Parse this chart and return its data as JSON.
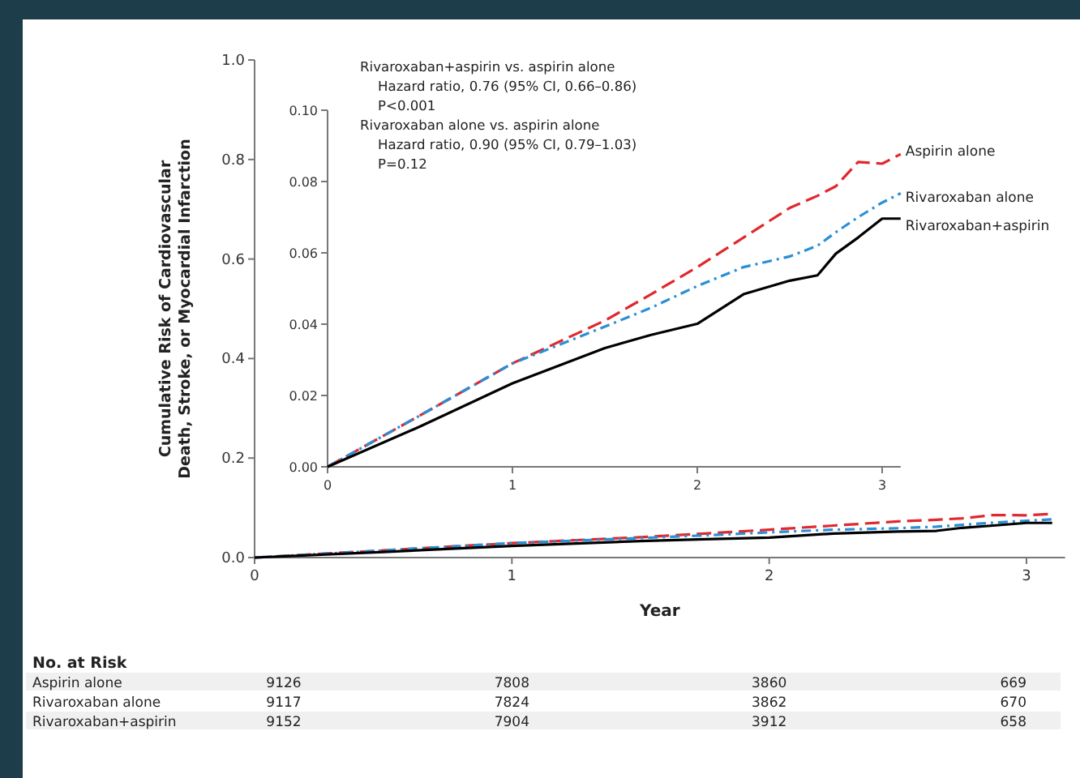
{
  "chart_data": [
    {
      "type": "line",
      "xlabel": "Year",
      "ylabel": "Cumulative Risk of Cardiovascular\nDeath, Stroke, or Myocardial Infarction",
      "x": [
        0,
        0.5,
        1,
        1.5,
        1.75,
        2,
        2.25,
        2.5,
        2.65,
        2.75,
        2.87,
        3,
        3.1
      ],
      "xlim": [
        0,
        3.15
      ],
      "xticks": [
        0,
        1,
        2,
        3
      ],
      "ylim": [
        0,
        1
      ],
      "yticks": [
        {
          "value": 0,
          "label": "0.0"
        },
        {
          "value": 0.2,
          "label": "0.2"
        },
        {
          "value": 0.4,
          "label": "0.4"
        },
        {
          "value": 0.6,
          "label": "0.6"
        },
        {
          "value": 0.8,
          "label": "0.8"
        },
        {
          "value": 1,
          "label": "1.0"
        }
      ],
      "grid": false,
      "legend": false,
      "series": [
        {
          "color": "#e0282e",
          "line_style": "dashed",
          "values": [
            0,
            0.0144,
            0.029,
            0.041,
            0.0484,
            0.056,
            0.0643,
            0.0726,
            0.076,
            0.0787,
            0.0855,
            0.085,
            0.0877
          ]
        },
        {
          "color": "#2a8fd6",
          "line_style": "dashdot",
          "values": [
            0,
            0.0144,
            0.029,
            0.0393,
            0.0446,
            0.0507,
            0.056,
            0.059,
            0.062,
            0.0658,
            0.07,
            0.0741,
            0.0767
          ]
        },
        {
          "color": "#000000",
          "line_style": "solid",
          "values": [
            0,
            0.0113,
            0.0234,
            0.0333,
            0.037,
            0.0401,
            0.0484,
            0.0522,
            0.0537,
            0.0598,
            0.0643,
            0.0696,
            0.0696
          ]
        }
      ]
    },
    {
      "type": "line",
      "annotations": [
        "Rivaroxaban+aspirin vs. aspirin alone",
        "   Hazard ratio, 0.76 (95% CI, 0.66–0.86)",
        "   P<0.001",
        "Rivaroxaban alone vs. aspirin alone",
        "   Hazard ratio, 0.90 (95% CI, 0.79–1.03)",
        "   P=0.12"
      ],
      "x": [
        0,
        0.5,
        1,
        1.5,
        1.75,
        2,
        2.25,
        2.5,
        2.65,
        2.75,
        2.87,
        3,
        3.1
      ],
      "xlim": [
        0,
        3.1
      ],
      "xticks": [
        0,
        1,
        2,
        3
      ],
      "ylim": [
        0,
        0.1
      ],
      "yticks": [
        {
          "value": 0,
          "label": "0.00"
        },
        {
          "value": 0.02,
          "label": "0.02"
        },
        {
          "value": 0.04,
          "label": "0.04"
        },
        {
          "value": 0.06,
          "label": "0.06"
        },
        {
          "value": 0.08,
          "label": "0.08"
        },
        {
          "value": 0.1,
          "label": "0.10"
        }
      ],
      "grid": false,
      "legend": false,
      "series": [
        {
          "name": "Aspirin alone",
          "color": "#e0282e",
          "line_style": "dashed",
          "values": [
            0,
            0.0144,
            0.029,
            0.041,
            0.0484,
            0.056,
            0.0643,
            0.0726,
            0.076,
            0.0787,
            0.0855,
            0.085,
            0.0877
          ]
        },
        {
          "name": "Rivaroxaban alone",
          "color": "#2a8fd6",
          "line_style": "dashdot",
          "values": [
            0,
            0.0144,
            0.029,
            0.0393,
            0.0446,
            0.0507,
            0.056,
            0.059,
            0.062,
            0.0658,
            0.07,
            0.0741,
            0.0767
          ]
        },
        {
          "name": "Rivaroxaban+aspirin",
          "color": "#000000",
          "line_style": "solid",
          "values": [
            0,
            0.0113,
            0.0234,
            0.0333,
            0.037,
            0.0401,
            0.0484,
            0.0522,
            0.0537,
            0.0598,
            0.0643,
            0.0696,
            0.0696
          ]
        }
      ]
    },
    {
      "type": "other",
      "title": "No. at Risk",
      "annotations": [
        "Aspirin alone",
        "9126",
        "7808",
        "3860",
        "669",
        "Rivaroxaban alone",
        "9117",
        "7824",
        "3862",
        "670",
        "Rivaroxaban+aspirin",
        "9152",
        "7904",
        "3912",
        "658"
      ]
    }
  ]
}
